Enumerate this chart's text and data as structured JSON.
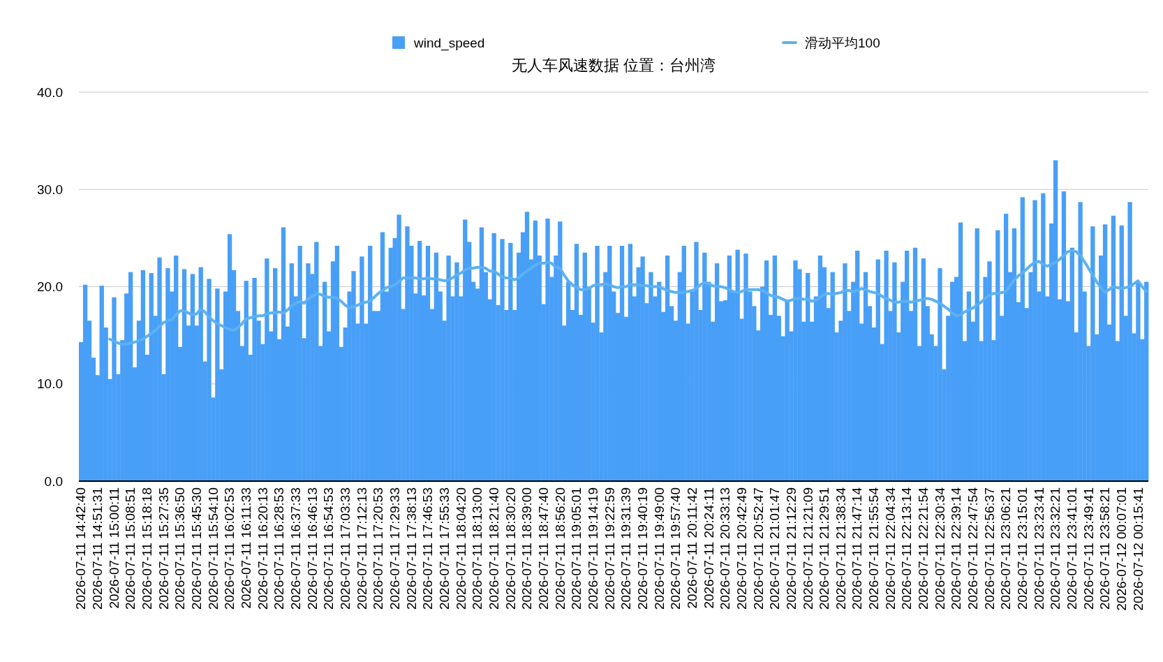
{
  "chart_data": {
    "type": "bar",
    "title": "无人车风速数据 位置：台州湾",
    "categories": [
      "2026-07-11 14:42:40",
      null,
      null,
      null,
      "2026-07-11 14:51:31",
      null,
      null,
      null,
      "2026-07-11 15:00:11",
      null,
      null,
      null,
      "2026-07-11 15:08:51",
      null,
      null,
      null,
      "2026-07-11 15:18:18",
      null,
      null,
      null,
      "2026-07-11 15:27:35",
      null,
      null,
      null,
      "2026-07-11 15:36:50",
      null,
      null,
      null,
      "2026-07-11 15:45:30",
      null,
      null,
      null,
      "2026-07-11 15:54:10",
      null,
      null,
      null,
      "2026-07-11 16:02:53",
      null,
      null,
      null,
      "2026-07-11 16:11:33",
      null,
      null,
      null,
      "2026-07-11 16:20:13",
      null,
      null,
      null,
      "2026-07-11 16:28:53",
      null,
      null,
      null,
      "2026-07-11 16:37:33",
      null,
      null,
      null,
      "2026-07-11 16:46:13",
      null,
      null,
      null,
      "2026-07-11 16:54:53",
      null,
      null,
      null,
      "2026-07-11 17:03:33",
      null,
      null,
      null,
      "2026-07-11 17:12:13",
      null,
      null,
      null,
      "2026-07-11 17:20:53",
      null,
      null,
      null,
      "2026-07-11 17:29:33",
      null,
      null,
      null,
      "2026-07-11 17:38:13",
      null,
      null,
      null,
      "2026-07-11 17:46:53",
      null,
      null,
      null,
      "2026-07-11 17:55:33",
      null,
      null,
      null,
      "2026-07-11 18:04:20",
      null,
      null,
      null,
      "2026-07-11 18:13:00",
      null,
      null,
      null,
      "2026-07-11 18:21:40",
      null,
      null,
      null,
      "2026-07-11 18:30:20",
      null,
      null,
      null,
      "2026-07-11 18:39:00",
      null,
      null,
      null,
      "2026-07-11 18:47:40",
      null,
      null,
      null,
      "2026-07-11 18:56:20",
      null,
      null,
      null,
      "2026-07-11 19:05:01",
      null,
      null,
      null,
      "2026-07-11 19:14:19",
      null,
      null,
      null,
      "2026-07-11 19:22:59",
      null,
      null,
      null,
      "2026-07-11 19:31:39",
      null,
      null,
      null,
      "2026-07-11 19:40:19",
      null,
      null,
      null,
      "2026-07-11 19:49:00",
      null,
      null,
      null,
      "2026-07-11 19:57:40",
      null,
      null,
      null,
      "2026-07-11 20:11:42",
      null,
      null,
      null,
      "2026-07-11 20:24:11",
      null,
      null,
      null,
      "2026-07-11 20:33:13",
      null,
      null,
      null,
      "2026-07-11 20:42:49",
      null,
      null,
      null,
      "2026-07-11 20:52:47",
      null,
      null,
      null,
      "2026-07-11 21:01:47",
      null,
      null,
      null,
      "2026-07-11 21:12:29",
      null,
      null,
      null,
      "2026-07-11 21:21:09",
      null,
      null,
      null,
      "2026-07-11 21:29:51",
      null,
      null,
      null,
      "2026-07-11 21:38:34",
      null,
      null,
      null,
      "2026-07-11 21:47:14",
      null,
      null,
      null,
      "2026-07-11 21:55:54",
      null,
      null,
      null,
      "2026-07-11 22:04:34",
      null,
      null,
      null,
      "2026-07-11 22:13:14",
      null,
      null,
      null,
      "2026-07-11 22:21:54",
      null,
      null,
      null,
      "2026-07-11 22:30:34",
      null,
      null,
      null,
      "2026-07-11 22:39:14",
      null,
      null,
      null,
      "2026-07-11 22:47:54",
      null,
      null,
      null,
      "2026-07-11 22:56:37",
      null,
      null,
      null,
      "2026-07-11 23:06:21",
      null,
      null,
      null,
      "2026-07-11 23:15:01",
      null,
      null,
      null,
      "2026-07-11 23:23:41",
      null,
      null,
      null,
      "2026-07-11 23:32:21",
      null,
      null,
      null,
      "2026-07-11 23:41:01",
      null,
      null,
      null,
      "2026-07-11 23:49:41",
      null,
      null,
      null,
      "2026-07-11 23:58:21",
      null,
      null,
      null,
      "2026-07-12 00:07:01",
      null,
      null,
      null,
      "2026-07-12 00:15:41",
      null,
      null
    ],
    "series": [
      {
        "name": "wind_speed",
        "color": "#489ff7",
        "values": [
          14.3,
          20.2,
          16.5,
          12.7,
          10.9,
          20.1,
          15.8,
          10.5,
          18.9,
          11.0,
          14.5,
          19.3,
          21.5,
          11.7,
          16.5,
          21.7,
          13.0,
          21.4,
          17.0,
          23.0,
          11.0,
          21.9,
          19.5,
          23.2,
          13.8,
          21.8,
          16.0,
          21.3,
          16.0,
          22.0,
          12.3,
          20.8,
          8.6,
          19.8,
          11.5,
          19.5,
          25.4,
          21.7,
          17.5,
          13.9,
          20.6,
          13.0,
          20.9,
          16.5,
          14.1,
          22.9,
          15.4,
          21.9,
          14.6,
          26.1,
          15.9,
          22.4,
          19.0,
          24.2,
          14.7,
          22.4,
          21.3,
          24.6,
          13.9,
          20.5,
          15.4,
          22.6,
          24.2,
          13.8,
          15.8,
          19.5,
          21.6,
          16.2,
          23.1,
          16.2,
          24.2,
          17.5,
          17.5,
          25.6,
          19.5,
          24.0,
          25.0,
          27.4,
          17.7,
          26.2,
          24.2,
          19.3,
          24.7,
          19.1,
          24.2,
          17.7,
          23.5,
          19.5,
          16.5,
          23.2,
          19.0,
          22.5,
          19.0,
          26.9,
          24.6,
          20.5,
          19.8,
          26.1,
          21.5,
          18.7,
          25.5,
          18.1,
          24.9,
          17.6,
          24.5,
          17.6,
          23.5,
          25.6,
          27.7,
          22.8,
          26.8,
          23.2,
          18.2,
          27.0,
          21.0,
          23.2,
          26.7,
          16.0,
          20.5,
          17.6,
          24.4,
          17.1,
          23.5,
          20.0,
          16.3,
          24.2,
          15.3,
          21.5,
          24.2,
          19.5,
          17.3,
          24.2,
          16.9,
          24.4,
          19.0,
          22.0,
          23.1,
          18.3,
          21.5,
          19.0,
          20.5,
          17.4,
          23.2,
          18.0,
          16.5,
          21.5,
          24.2,
          16.2,
          19.5,
          24.6,
          17.6,
          23.5,
          20.5,
          16.4,
          22.4,
          18.5,
          18.6,
          23.2,
          19.5,
          23.8,
          16.7,
          23.4,
          19.5,
          18.0,
          15.5,
          20.0,
          22.7,
          17.1,
          23.2,
          17.0,
          14.9,
          18.5,
          15.4,
          22.7,
          21.8,
          16.4,
          21.4,
          16.4,
          19.0,
          23.2,
          22.0,
          17.8,
          21.5,
          15.3,
          16.5,
          22.4,
          17.5,
          20.5,
          23.7,
          16.2,
          21.5,
          18.0,
          15.8,
          22.8,
          14.1,
          23.7,
          17.5,
          22.5,
          15.3,
          20.5,
          23.7,
          17.5,
          24.0,
          13.9,
          22.9,
          18.0,
          15.1,
          13.9,
          21.9,
          11.5,
          17.0,
          20.5,
          21.0,
          26.6,
          14.4,
          19.5,
          16.4,
          26.0,
          14.4,
          21.0,
          22.6,
          14.5,
          25.8,
          17.0,
          27.5,
          21.5,
          26.0,
          18.4,
          29.2,
          17.8,
          21.5,
          28.9,
          19.5,
          29.6,
          19.0,
          26.5,
          33.0,
          18.7,
          29.8,
          18.5,
          24.0,
          15.3,
          28.7,
          19.5,
          13.9,
          26.2,
          15.1,
          23.2,
          26.4,
          16.1,
          27.3,
          14.4,
          26.3,
          17.0,
          28.7,
          15.2,
          20.5,
          14.6,
          20.5
        ]
      },
      {
        "name": "滑动平均100",
        "type": "line",
        "color": "#5cb1f2",
        "values": [
          null,
          null,
          null,
          null,
          null,
          null,
          null,
          14.6,
          14.4,
          14.2,
          14.1,
          14.1,
          14.2,
          14.3,
          14.4,
          14.6,
          14.9,
          15.2,
          15.5,
          15.9,
          16.3,
          16.5,
          16.6,
          17.1,
          17.5,
          17.5,
          17.3,
          17.1,
          17.2,
          17.7,
          17.4,
          16.9,
          16.5,
          16.2,
          16.0,
          15.8,
          15.6,
          15.5,
          15.8,
          16.2,
          16.7,
          16.8,
          16.9,
          17.0,
          17.0,
          17.2,
          17.3,
          17.3,
          17.4,
          17.3,
          17.6,
          18.0,
          18.3,
          18.5,
          18.3,
          18.7,
          19.0,
          19.3,
          19.2,
          19.0,
          18.9,
          18.9,
          18.8,
          18.5,
          18.1,
          17.8,
          17.9,
          18.1,
          18.3,
          18.4,
          18.5,
          18.9,
          19.3,
          19.6,
          19.9,
          20.0,
          20.2,
          20.5,
          20.9,
          20.9,
          20.9,
          20.9,
          20.8,
          20.8,
          20.9,
          20.8,
          20.8,
          20.7,
          20.6,
          20.7,
          20.9,
          21.2,
          21.4,
          21.7,
          21.9,
          21.9,
          22.0,
          22.0,
          21.9,
          21.6,
          21.6,
          21.3,
          21.0,
          20.9,
          20.9,
          20.7,
          20.9,
          21.3,
          21.6,
          21.9,
          22.2,
          22.4,
          22.4,
          22.5,
          22.4,
          22.0,
          21.9,
          21.2,
          20.6,
          20.2,
          19.9,
          19.7,
          19.7,
          19.8,
          20.1,
          20.2,
          20.2,
          20.3,
          20.2,
          20.0,
          19.9,
          20.0,
          20.0,
          20.2,
          20.2,
          20.2,
          20.1,
          20.1,
          20.0,
          20.0,
          20.0,
          19.8,
          19.6,
          19.5,
          19.4,
          19.4,
          19.4,
          19.5,
          19.6,
          19.8,
          20.2,
          20.4,
          20.3,
          20.1,
          20.0,
          20.0,
          19.9,
          19.7,
          19.5,
          19.4,
          19.5,
          19.7,
          19.7,
          19.7,
          19.7,
          19.6,
          19.4,
          19.1,
          19.0,
          18.9,
          18.7,
          18.5,
          18.6,
          18.8,
          18.8,
          18.7,
          18.7,
          18.5,
          18.6,
          18.9,
          19.2,
          19.3,
          19.2,
          19.3,
          19.4,
          19.6,
          19.6,
          19.5,
          19.6,
          19.8,
          19.7,
          19.5,
          19.4,
          19.3,
          19.0,
          18.8,
          18.6,
          18.4,
          18.4,
          18.5,
          18.5,
          18.4,
          18.5,
          18.6,
          18.7,
          18.8,
          18.7,
          18.5,
          18.3,
          18.0,
          17.7,
          17.3,
          17.0,
          17.1,
          17.4,
          17.6,
          17.8,
          18.1,
          18.4,
          18.8,
          19.1,
          19.3,
          19.3,
          19.4,
          19.5,
          20.1,
          20.7,
          21.1,
          21.4,
          21.8,
          22.2,
          22.5,
          22.6,
          22.3,
          22.1,
          22.3,
          22.5,
          22.8,
          23.2,
          23.6,
          23.7,
          23.6,
          23.2,
          22.6,
          21.9,
          21.2,
          20.5,
          19.9,
          19.4,
          19.7,
          20.0,
          19.9,
          19.8,
          19.9,
          20.0,
          20.3,
          20.6,
          20.0,
          19.5
        ]
      }
    ],
    "ylim": [
      0,
      40
    ],
    "yticks": [
      {
        "value": 0,
        "label": "0.0"
      },
      {
        "value": 10,
        "label": "10.0"
      },
      {
        "value": 20,
        "label": "20.0"
      },
      {
        "value": 30,
        "label": "30.0"
      },
      {
        "value": 40,
        "label": "40.0"
      }
    ],
    "grid": "y",
    "legend": "top"
  }
}
